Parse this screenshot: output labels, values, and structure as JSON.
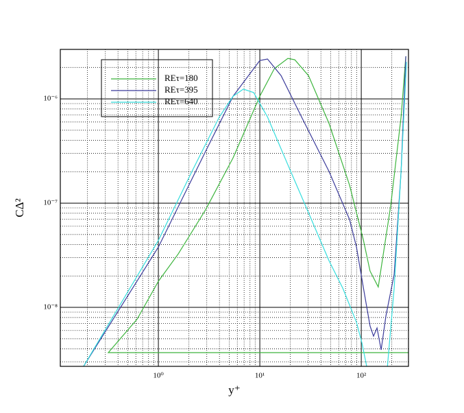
{
  "chart_data": {
    "type": "line",
    "x_label": "y⁺",
    "y_label": "CΔ²",
    "log_x": true,
    "log_y": true,
    "grid": true,
    "legend": "upper left",
    "xlim": [
      0.108,
      292
    ],
    "ylim": [
      2.72e-09,
      2.98e-06
    ],
    "xticks": [
      {
        "value": 1,
        "label": "10⁰"
      },
      {
        "value": 10,
        "label": "10¹"
      },
      {
        "value": 100,
        "label": "10²"
      }
    ],
    "yticks": [
      {
        "value": 1e-08,
        "label": "10⁻⁸"
      },
      {
        "value": 1e-07,
        "label": "10⁻⁷"
      },
      {
        "value": 1e-06,
        "label": "10⁻⁶"
      }
    ],
    "series": [
      {
        "name": "REτ=180",
        "color": "#3cb43c",
        "x": [
          292,
          0.321,
          0.617,
          1,
          1.57,
          2.93,
          5.45,
          10,
          13.9,
          18.9,
          22.1,
          30.2,
          48.1,
          76.8,
          105,
          122,
          147,
          195,
          247,
          275
        ],
        "values": [
          3.68e-09,
          3.68e-09,
          7.7e-09,
          1.78e-08,
          3.26e-08,
          8.7e-08,
          2.72e-07,
          1.06e-06,
          1.95e-06,
          2.44e-06,
          2.37e-06,
          1.67e-06,
          5.8e-07,
          1.48e-07,
          4.4e-08,
          2.23e-08,
          1.57e-08,
          9.4e-08,
          6.7e-07,
          2.56e-06
        ]
      },
      {
        "name": "REτ=395",
        "color": "#3a3a9a",
        "x": [
          0.183,
          1,
          2.93,
          5.45,
          10,
          11.9,
          16.2,
          25.8,
          48.1,
          76.8,
          89.7,
          105,
          122,
          132,
          143,
          157,
          175,
          211,
          247,
          275
        ],
        "values": [
          2.72e-09,
          3.79e-08,
          3.16e-07,
          1.06e-06,
          2.33e-06,
          2.41e-06,
          1.67e-06,
          6.7e-07,
          2.01e-07,
          6.95e-08,
          3.79e-08,
          1.53e-08,
          6.64e-09,
          5.3e-09,
          6.35e-09,
          3.91e-09,
          8.3e-09,
          2.07e-08,
          2.01e-07,
          2.56e-06
        ]
      },
      {
        "name": "REτ=640",
        "color": "#33dddd",
        "x": [
          0.183,
          1,
          2.14,
          3.99,
          5.45,
          6.88,
          8.69,
          11.9,
          18.9,
          30.2,
          48.1,
          65.7,
          89.7,
          101.5,
          113,
          150,
          181,
          211,
          247,
          279
        ],
        "values": [
          2.72e-09,
          4.4e-08,
          2.01e-07,
          6.7e-07,
          1.06e-06,
          1.24e-06,
          1.15e-06,
          6.7e-07,
          2.33e-07,
          8.1e-08,
          2.8e-08,
          1.53e-08,
          7.2e-09,
          4.55e-09,
          2.72e-09,
          null,
          2.72e-09,
          1.53e-08,
          2.01e-07,
          2.26e-06
        ]
      }
    ]
  }
}
